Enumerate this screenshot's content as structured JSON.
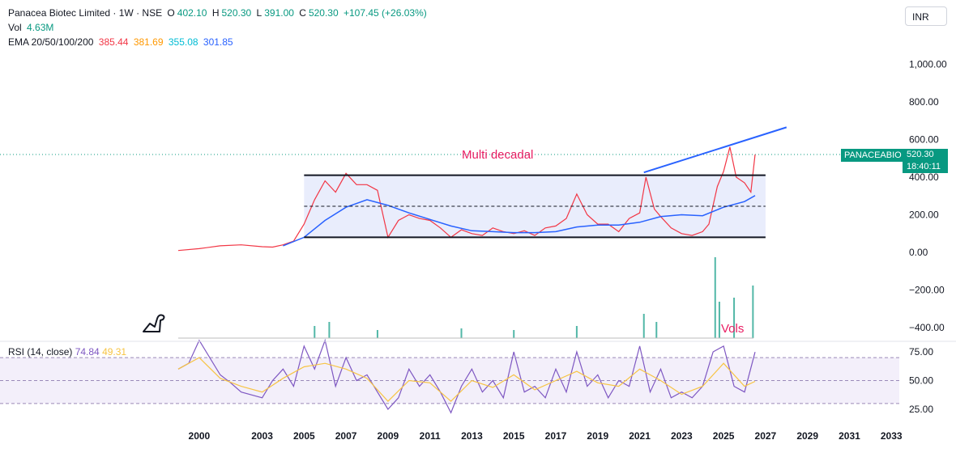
{
  "header": {
    "symbol": "Panacea Biotec Limited · 1W · NSE",
    "o_label": "O",
    "o_value": "402.10",
    "h_label": "H",
    "h_value": "520.30",
    "l_label": "L",
    "l_value": "391.00",
    "c_label": "C",
    "c_value": "520.30",
    "change": "+107.45 (+26.03%)",
    "vol_label": "Vol",
    "vol_value": "4.63M",
    "ema_label": "EMA 20/50/100/200",
    "ema_values": [
      "385.44",
      "381.69",
      "355.08",
      "301.85"
    ]
  },
  "currency_button": "INR",
  "ticker_badge": "PANACEABIO",
  "last_price": "520.30",
  "countdown": "18:40:11",
  "annotations": {
    "multi_decadal": "Multi decadal",
    "vols": "Vols"
  },
  "rsi": {
    "label": "RSI (14, close)",
    "value": "74.84",
    "ma": "49.31"
  },
  "colors": {
    "up": "#089981",
    "ema20": "#f23645",
    "ema50": "#ff9800",
    "ema100": "#00bcd4",
    "ema200": "#2962ff",
    "rsi_line": "#7e57c2",
    "rsi_ma": "#f7c443",
    "annotation": "#e91e63",
    "channel_fill": "#e3e8fb"
  },
  "chart_data": [
    {
      "type": "line",
      "title": "Panacea Biotec Limited · 1W · NSE",
      "y_ticks": [
        -400,
        -200,
        0,
        200,
        400,
        600,
        800,
        1000
      ],
      "y_tick_labels": [
        "−400.00",
        "−200.00",
        "0.00",
        "200.00",
        "400.00",
        "600.00",
        "800.00",
        "1,000.00"
      ],
      "x_ticks": [
        2000,
        2003,
        2005,
        2007,
        2009,
        2011,
        2013,
        2015,
        2017,
        2019,
        2021,
        2023,
        2025,
        2027,
        2029,
        2031,
        2033
      ],
      "x_tick_labels": [
        "2000",
        "2003",
        "2005",
        "2007",
        "2009",
        "2011",
        "2013",
        "2015",
        "2017",
        "2019",
        "2021",
        "2023",
        "2025",
        "2027",
        "2029",
        "2031",
        "2033"
      ],
      "ylim": [
        -450,
        1100
      ],
      "xlim": [
        1999.0,
        2033.3
      ],
      "series": [
        {
          "name": "Close",
          "x": [
            1999.0,
            2000.0,
            2001.0,
            2002.0,
            2003.0,
            2003.5,
            2004.0,
            2004.5,
            2005.0,
            2005.5,
            2006.0,
            2006.5,
            2007.0,
            2007.5,
            2008.0,
            2008.5,
            2009.0,
            2009.5,
            2010.0,
            2010.5,
            2011.0,
            2011.5,
            2012.0,
            2012.5,
            2013.0,
            2013.5,
            2014.0,
            2014.5,
            2015.0,
            2015.5,
            2016.0,
            2016.5,
            2017.0,
            2017.5,
            2018.0,
            2018.5,
            2019.0,
            2019.5,
            2020.0,
            2020.5,
            2021.0,
            2021.3,
            2021.7,
            2022.0,
            2022.5,
            2023.0,
            2023.5,
            2024.0,
            2024.3,
            2024.7,
            2025.0,
            2025.3,
            2025.6,
            2026.0,
            2026.3,
            2026.5
          ],
          "values": [
            10,
            20,
            35,
            40,
            30,
            28,
            40,
            60,
            150,
            280,
            380,
            320,
            420,
            360,
            360,
            330,
            80,
            170,
            200,
            180,
            170,
            130,
            80,
            120,
            100,
            90,
            130,
            110,
            100,
            115,
            90,
            130,
            140,
            180,
            310,
            200,
            150,
            150,
            110,
            180,
            210,
            400,
            230,
            190,
            130,
            100,
            90,
            110,
            150,
            350,
            430,
            560,
            400,
            370,
            320,
            520
          ]
        },
        {
          "name": "EMA 200",
          "x": [
            2004.0,
            2005.0,
            2006.0,
            2007.0,
            2008.0,
            2009.0,
            2010.0,
            2011.0,
            2012.0,
            2013.0,
            2014.0,
            2015.0,
            2016.0,
            2017.0,
            2018.0,
            2019.0,
            2020.0,
            2021.0,
            2022.0,
            2023.0,
            2024.0,
            2025.0,
            2026.0,
            2026.5
          ],
          "values": [
            35,
            80,
            170,
            240,
            280,
            250,
            210,
            175,
            140,
            115,
            110,
            105,
            105,
            110,
            135,
            145,
            145,
            160,
            190,
            200,
            195,
            240,
            270,
            301.85
          ]
        }
      ],
      "trendlines": [
        {
          "name": "channel top",
          "x": [
            2005.0,
            2027.0
          ],
          "values": [
            410,
            410
          ]
        },
        {
          "name": "channel bottom",
          "x": [
            2005.0,
            2027.0
          ],
          "values": [
            80,
            80
          ]
        },
        {
          "name": "channel mid",
          "x": [
            2005.0,
            2027.0
          ],
          "values": [
            245,
            245
          ]
        },
        {
          "name": "rising line",
          "x": [
            2021.2,
            2028.0
          ],
          "values": [
            425,
            665
          ]
        }
      ]
    },
    {
      "type": "line",
      "title": "RSI (14, close)",
      "y_ticks": [
        25,
        50,
        75
      ],
      "y_tick_labels": [
        "25.00",
        "50.00",
        "75.00"
      ],
      "ylim": [
        15,
        90
      ],
      "bands": [
        30,
        50,
        70
      ],
      "series": [
        {
          "name": "RSI",
          "x": [
            1999.0,
            1999.5,
            2000.0,
            2001.0,
            2001.5,
            2002.0,
            2003.0,
            2003.5,
            2004.0,
            2004.5,
            2005.0,
            2005.5,
            2006.0,
            2006.5,
            2007.0,
            2007.5,
            2008.0,
            2008.5,
            2009.0,
            2009.5,
            2010.0,
            2010.5,
            2011.0,
            2011.5,
            2012.0,
            2012.5,
            2013.0,
            2013.5,
            2014.0,
            2014.5,
            2015.0,
            2015.5,
            2016.0,
            2016.5,
            2017.0,
            2017.5,
            2018.0,
            2018.5,
            2019.0,
            2019.5,
            2020.0,
            2020.5,
            2021.0,
            2021.5,
            2022.0,
            2022.5,
            2023.0,
            2023.5,
            2024.0,
            2024.5,
            2025.0,
            2025.5,
            2026.0,
            2026.5
          ],
          "values": [
            60,
            65,
            85,
            55,
            48,
            40,
            35,
            50,
            60,
            45,
            80,
            60,
            85,
            45,
            70,
            50,
            55,
            40,
            25,
            35,
            60,
            45,
            55,
            40,
            22,
            45,
            60,
            40,
            50,
            35,
            75,
            40,
            45,
            35,
            60,
            40,
            75,
            45,
            55,
            35,
            50,
            45,
            80,
            40,
            60,
            35,
            40,
            35,
            45,
            75,
            80,
            45,
            40,
            74.84
          ]
        },
        {
          "name": "RSI MA",
          "x": [
            1999.0,
            2000.0,
            2001.0,
            2002.0,
            2003.0,
            2004.0,
            2005.0,
            2006.0,
            2007.0,
            2008.0,
            2009.0,
            2010.0,
            2011.0,
            2012.0,
            2013.0,
            2014.0,
            2015.0,
            2016.0,
            2017.0,
            2018.0,
            2019.0,
            2020.0,
            2021.0,
            2022.0,
            2023.0,
            2024.0,
            2025.0,
            2026.0,
            2026.5
          ],
          "values": [
            60,
            70,
            52,
            45,
            40,
            52,
            62,
            65,
            60,
            52,
            32,
            50,
            48,
            32,
            50,
            44,
            55,
            42,
            50,
            58,
            48,
            45,
            60,
            50,
            38,
            45,
            65,
            45,
            49.31
          ]
        }
      ]
    },
    {
      "type": "bar",
      "title": "Vol",
      "series": [
        {
          "name": "Volume spikes",
          "x": [
            2005.5,
            2006.2,
            2008.5,
            2012.5,
            2015.0,
            2018.0,
            2021.2,
            2021.8,
            2024.6,
            2024.8,
            2025.5,
            2026.4
          ],
          "values": [
            0.15,
            0.2,
            0.1,
            0.12,
            0.1,
            0.15,
            0.3,
            0.2,
            1.0,
            0.45,
            0.5,
            0.65
          ]
        }
      ]
    }
  ]
}
